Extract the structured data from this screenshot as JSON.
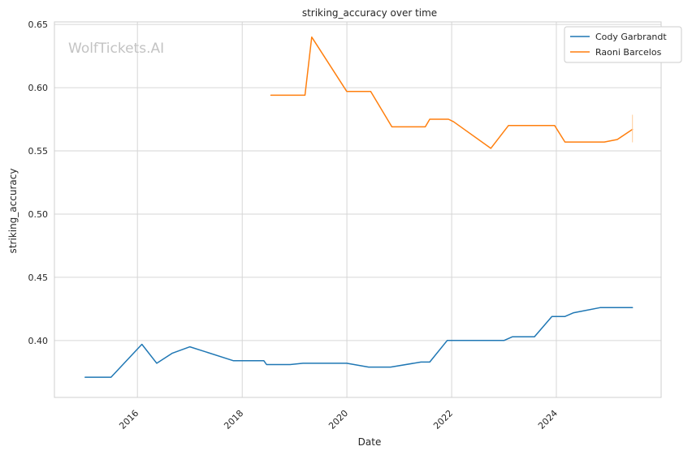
{
  "chart_data": {
    "type": "line",
    "title": "striking_accuracy over time",
    "xlabel": "Date",
    "ylabel": "striking_accuracy",
    "x_ticks": [
      "2016",
      "2018",
      "2020",
      "2022",
      "2024"
    ],
    "y_ticks": [
      "0.40",
      "0.45",
      "0.50",
      "0.55",
      "0.60",
      "0.65"
    ],
    "xlim": [
      "2014-06-01",
      "2026-01-01"
    ],
    "ylim": [
      0.355,
      0.652
    ],
    "grid": true,
    "legend_position": "top-right",
    "watermark": "WolfTickets.AI",
    "series": [
      {
        "name": "Cody Garbrandt",
        "color": "#1f77b4",
        "points": [
          [
            "2015-01-01",
            0.371
          ],
          [
            "2015-07-01",
            0.371
          ],
          [
            "2016-02-01",
            0.397
          ],
          [
            "2016-05-15",
            0.382
          ],
          [
            "2016-09-01",
            0.39
          ],
          [
            "2017-01-01",
            0.395
          ],
          [
            "2017-11-01",
            0.384
          ],
          [
            "2018-06-01",
            0.384
          ],
          [
            "2018-06-20",
            0.381
          ],
          [
            "2018-12-01",
            0.381
          ],
          [
            "2019-03-01",
            0.382
          ],
          [
            "2019-12-31",
            0.382
          ],
          [
            "2020-06-01",
            0.379
          ],
          [
            "2020-11-01",
            0.379
          ],
          [
            "2021-06-01",
            0.383
          ],
          [
            "2021-08-01",
            0.383
          ],
          [
            "2021-12-01",
            0.4
          ],
          [
            "2023-01-01",
            0.4
          ],
          [
            "2023-03-01",
            0.403
          ],
          [
            "2023-08-01",
            0.403
          ],
          [
            "2023-12-01",
            0.419
          ],
          [
            "2024-03-01",
            0.419
          ],
          [
            "2024-05-01",
            0.422
          ],
          [
            "2024-11-01",
            0.426
          ],
          [
            "2025-06-15",
            0.426
          ]
        ]
      },
      {
        "name": "Raoni Barcelos",
        "color": "#ff7f0e",
        "points": [
          [
            "2018-07-20",
            0.594
          ],
          [
            "2019-03-15",
            0.594
          ],
          [
            "2019-05-01",
            0.64
          ],
          [
            "2019-12-31",
            0.597
          ],
          [
            "2020-06-15",
            0.597
          ],
          [
            "2020-11-10",
            0.569
          ],
          [
            "2021-07-01",
            0.569
          ],
          [
            "2021-08-01",
            0.575
          ],
          [
            "2021-12-10",
            0.575
          ],
          [
            "2022-01-15",
            0.573
          ],
          [
            "2022-10-01",
            0.552
          ],
          [
            "2023-02-01",
            0.57
          ],
          [
            "2023-06-01",
            0.57
          ],
          [
            "2023-12-20",
            0.57
          ],
          [
            "2024-03-01",
            0.557
          ],
          [
            "2024-12-01",
            0.557
          ],
          [
            "2025-03-01",
            0.559
          ],
          [
            "2025-06-15",
            0.567
          ]
        ]
      }
    ]
  }
}
